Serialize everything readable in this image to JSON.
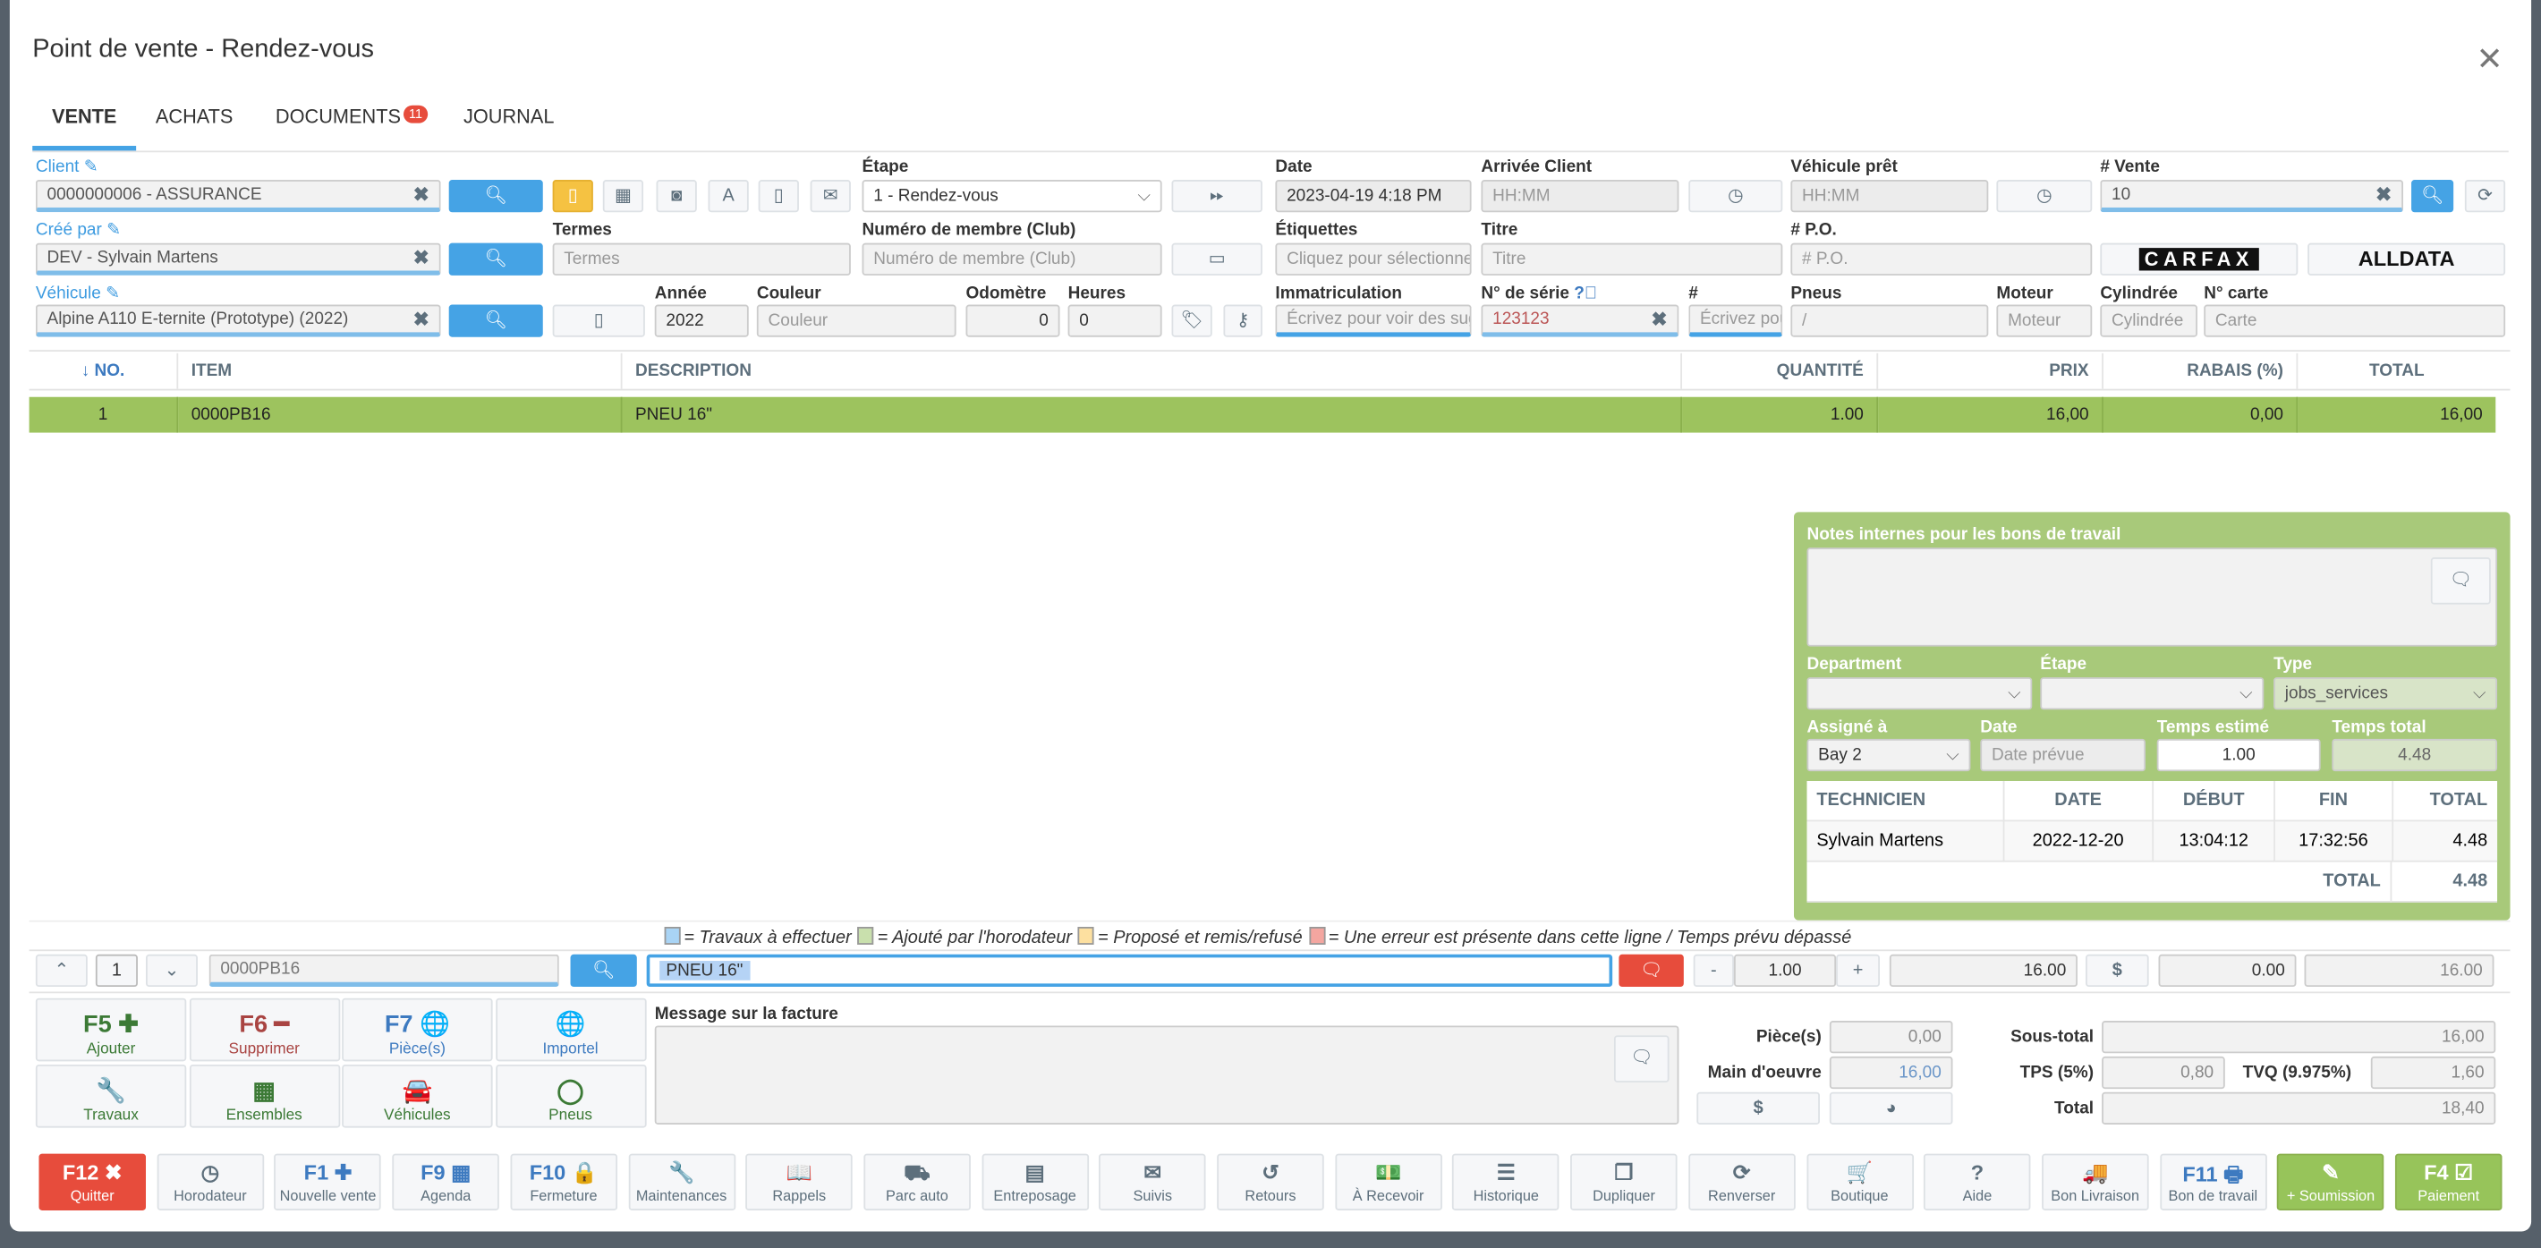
{
  "window": {
    "title": "Point de vente - Rendez-vous",
    "close_icon": "close-icon"
  },
  "tabs": [
    {
      "label": "VENTE",
      "active": true
    },
    {
      "label": "ACHATS"
    },
    {
      "label": "DOCUMENTS",
      "badge": "11"
    },
    {
      "label": "JOURNAL"
    }
  ],
  "form": {
    "client": {
      "label": "Client",
      "value": "0000000006 - ASSURANCE"
    },
    "etape": {
      "label": "Étape",
      "value": "1 - Rendez-vous"
    },
    "date": {
      "label": "Date",
      "value": "2023-04-19 4:18 PM"
    },
    "arrivee": {
      "label": "Arrivée Client",
      "placeholder": "HH:MM"
    },
    "vehicule_pret": {
      "label": "Véhicule prêt",
      "placeholder": "HH:MM"
    },
    "vente": {
      "label": "# Vente",
      "value": "10"
    },
    "cree_par": {
      "label": "Créé par",
      "value": "DEV - Sylvain Martens"
    },
    "termes": {
      "label": "Termes",
      "placeholder": "Termes"
    },
    "membre": {
      "label": "Numéro de membre (Club)",
      "placeholder": "Numéro de membre (Club)"
    },
    "etiquettes": {
      "label": "Étiquettes",
      "placeholder": "Cliquez pour sélectionner"
    },
    "titre": {
      "label": "Titre",
      "placeholder": "Titre"
    },
    "po": {
      "label": "# P.O.",
      "placeholder": "# P.O."
    },
    "carfax": "CARFAX",
    "alldata": "ALLDATA",
    "vehicule": {
      "label": "Véhicule",
      "value": "Alpine A110 E-ternite (Prototype) (2022)"
    },
    "annee": {
      "label": "Année",
      "value": "2022"
    },
    "couleur": {
      "label": "Couleur",
      "placeholder": "Couleur"
    },
    "odometre": {
      "label": "Odomètre",
      "value": "0"
    },
    "heures": {
      "label": "Heures",
      "value": "0"
    },
    "immatriculation": {
      "label": "Immatriculation",
      "placeholder": "Écrivez pour voir des suggestions"
    },
    "serie": {
      "label": "N° de série",
      "value": "123123"
    },
    "hash": {
      "label": "#",
      "placeholder": "Écrivez pour voir"
    },
    "pneus": {
      "label": "Pneus",
      "placeholder": "/"
    },
    "moteur": {
      "label": "Moteur",
      "placeholder": "Moteur"
    },
    "cylindree": {
      "label": "Cylindrée",
      "placeholder": "Cylindrée"
    },
    "carte": {
      "label": "N° carte",
      "placeholder": "Carte"
    }
  },
  "table": {
    "headers": [
      "↓ NO.",
      "ITEM",
      "DESCRIPTION",
      "QUANTITÉ",
      "PRIX",
      "RABAIS (%)",
      "TOTAL"
    ],
    "rows": [
      [
        "1",
        "0000PB16",
        "PNEU 16\"",
        "1.00",
        "16,00",
        "0,00",
        "16,00"
      ]
    ],
    "selected_row_color": "#9dc35e"
  },
  "work_panel": {
    "notes_label": "Notes internes pour les bons de travail",
    "department_label": "Department",
    "etape_label": "Étape",
    "type_label": "Type",
    "type_value": "jobs_services",
    "assigne_label": "Assigné à",
    "assigne_value": "Bay 2",
    "date_label": "Date",
    "date_placeholder": "Date prévue",
    "temps_estime_label": "Temps estimé",
    "temps_estime_value": "1.00",
    "temps_total_label": "Temps total",
    "temps_total_value": "4.48",
    "headers": [
      "TECHNICIEN",
      "DATE",
      "DÉBUT",
      "FIN",
      "TOTAL"
    ],
    "rows": [
      [
        "Sylvain Martens",
        "2022-12-20",
        "13:04:12",
        "17:32:56",
        "4.48"
      ]
    ],
    "total_label": "TOTAL",
    "total_value": "4.48",
    "color": "#a8c97a"
  },
  "legend": [
    {
      "color": "#a9d4f5",
      "text": "= Travaux à effectuer"
    },
    {
      "color": "#c9e0ad",
      "text": "= Ajouté par l'horodateur"
    },
    {
      "color": "#fde0a0",
      "text": "= Proposé et remis/refusé"
    },
    {
      "color": "#f4a6a0",
      "text": "= Une erreur est présente dans cette ligne / Temps prévu dépassé"
    }
  ],
  "entry": {
    "line": "1",
    "item": "0000PB16",
    "description": "PNEU 16\"",
    "qty": "1.00",
    "minus": "-",
    "plus": "+",
    "price": "16.00",
    "discount": "0.00",
    "total": "16.00"
  },
  "actions": [
    {
      "key": "F5 ✚",
      "label": "Ajouter",
      "color": "#3c7a36",
      "icon": "plus-icon"
    },
    {
      "key": "F6 ━",
      "label": "Supprimer",
      "color": "#a94442",
      "icon": "minus-icon"
    },
    {
      "key": "F7 🌐",
      "label": "Pièce(s)",
      "color": "#3d7ac0",
      "icon": "globe-icon"
    },
    {
      "key": "🌐",
      "label": "Importel",
      "color": "#3d7ac0",
      "icon": "globe-icon"
    },
    {
      "key": "🔧",
      "label": "Travaux",
      "color": "#3c7a36",
      "icon": "wrench-icon"
    },
    {
      "key": "▦",
      "label": "Ensembles",
      "color": "#3c7a36",
      "icon": "grid-icon"
    },
    {
      "key": "🚘",
      "label": "Véhicules",
      "color": "#3c7a36",
      "icon": "car-icon"
    },
    {
      "key": "◯",
      "label": "Pneus",
      "color": "#3c7a36",
      "icon": "tire-icon"
    }
  ],
  "message": {
    "label": "Message sur la facture"
  },
  "totals": {
    "pieces_label": "Pièce(s)",
    "pieces": "0,00",
    "main_label": "Main d'oeuvre",
    "main": "16,00",
    "sous_total_label": "Sous-total",
    "sous_total": "16,00",
    "tps_label": "TPS (5%)",
    "tps": "0,80",
    "tvq_label": "TVQ (9.975%)",
    "tvq": "1,60",
    "total_label": "Total",
    "total": "18,40"
  },
  "toolbar": [
    {
      "key": "F12 ✖",
      "label": "Quitter",
      "style": "red",
      "icon": "close-icon"
    },
    {
      "key": "◷",
      "label": "Horodateur",
      "icon": "clock-icon"
    },
    {
      "key": "F1 ✚",
      "label": "Nouvelle vente",
      "icon": "plus-icon"
    },
    {
      "key": "F9 ▦",
      "label": "Agenda",
      "icon": "calendar-icon"
    },
    {
      "key": "F10 🔒",
      "label": "Fermeture",
      "icon": "lock-icon"
    },
    {
      "key": "🔧",
      "label": "Maintenances",
      "icon": "wrench-icon"
    },
    {
      "key": "📖",
      "label": "Rappels",
      "icon": "book-icon"
    },
    {
      "key": "⛟",
      "label": "Parc auto",
      "icon": "road-icon"
    },
    {
      "key": "▤",
      "label": "Entreposage",
      "icon": "archive-icon"
    },
    {
      "key": "✉",
      "label": "Suivis",
      "icon": "envelope-icon"
    },
    {
      "key": "↺",
      "label": "Retours",
      "icon": "undo-icon"
    },
    {
      "key": "💵",
      "label": "À Recevoir",
      "icon": "money-icon"
    },
    {
      "key": "☰",
      "label": "Historique",
      "icon": "list-icon"
    },
    {
      "key": "❐",
      "label": "Dupliquer",
      "icon": "copy-icon"
    },
    {
      "key": "⟳",
      "label": "Renverser",
      "icon": "refresh-icon"
    },
    {
      "key": "🛒",
      "label": "Boutique",
      "icon": "cart-icon"
    },
    {
      "key": "?",
      "label": "Aide",
      "icon": "question-icon"
    },
    {
      "key": "🚚",
      "label": "Bon Livraison",
      "icon": "truck-icon"
    },
    {
      "key": "F11 🖶",
      "label": "Bon de travail",
      "icon": "print-icon"
    },
    {
      "key": "✎",
      "label": "+ Soumission",
      "style": "green",
      "icon": "edit-icon"
    },
    {
      "key": "F4 ☑",
      "label": "Paiement",
      "style": "green",
      "icon": "check-icon"
    }
  ]
}
